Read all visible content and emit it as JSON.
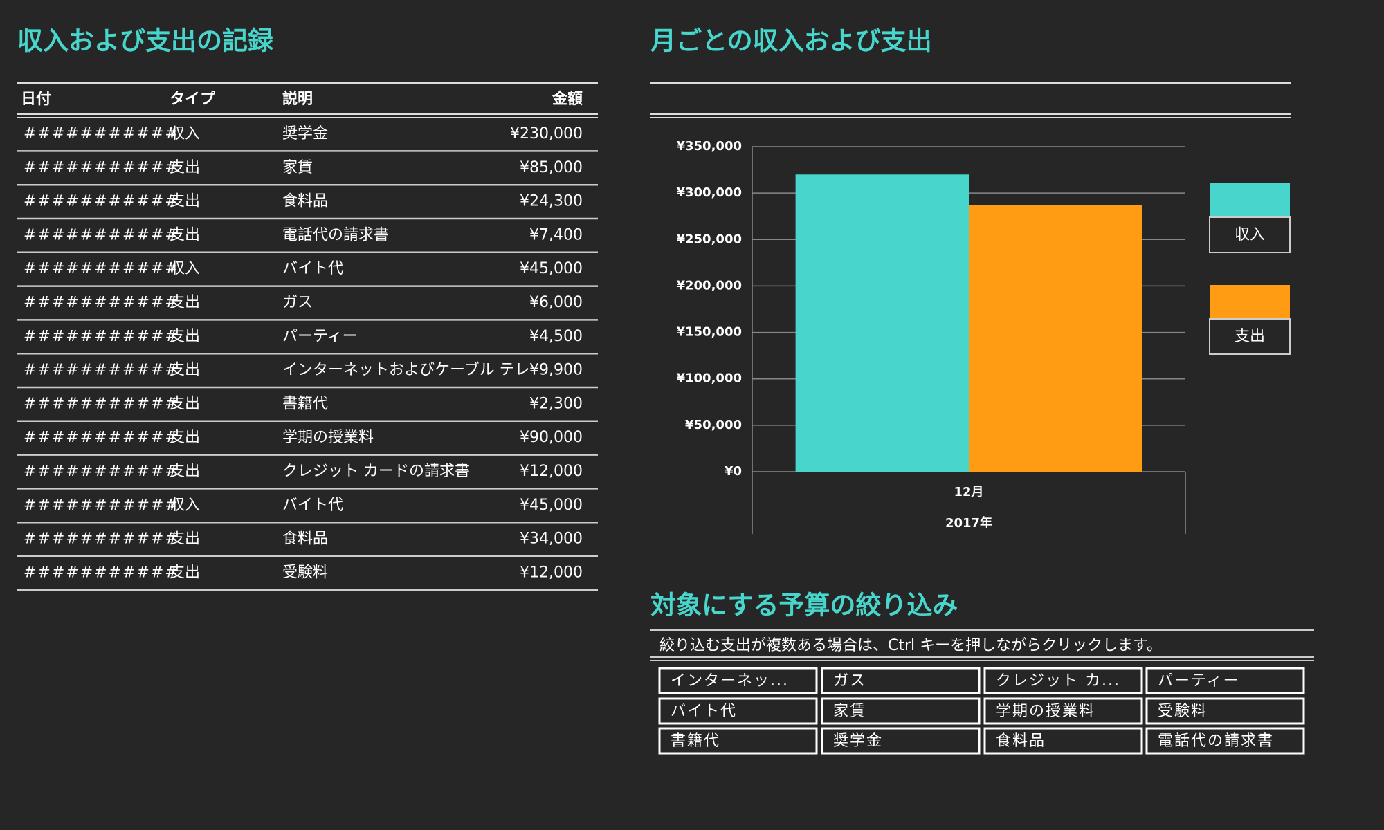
{
  "ledger": {
    "title": "収入および支出の記録",
    "headers": [
      "日付",
      "タイプ",
      "説明",
      "金額"
    ],
    "type_colors": {
      "収入": "#48d6cc",
      "支出": "#ff9c13"
    },
    "rows": [
      [
        "###########",
        "収入",
        "奨学金",
        "¥230,000"
      ],
      [
        "###########",
        "支出",
        "家賃",
        "¥85,000"
      ],
      [
        "###########",
        "支出",
        "食料品",
        "¥24,300"
      ],
      [
        "###########",
        "支出",
        "電話代の請求書",
        "¥7,400"
      ],
      [
        "###########",
        "収入",
        "バイト代",
        "¥45,000"
      ],
      [
        "###########",
        "支出",
        "ガス",
        "¥6,000"
      ],
      [
        "###########",
        "支出",
        "パーティー",
        "¥4,500"
      ],
      [
        "###########",
        "支出",
        "インターネットおよびケーブル テレ",
        "¥9,900"
      ],
      [
        "###########",
        "支出",
        "書籍代",
        "¥2,300"
      ],
      [
        "###########",
        "支出",
        "学期の授業料",
        "¥90,000"
      ],
      [
        "###########",
        "支出",
        "クレジット カードの請求書",
        "¥12,000"
      ],
      [
        "###########",
        "収入",
        "バイト代",
        "¥45,000"
      ],
      [
        "###########",
        "支出",
        "食料品",
        "¥34,000"
      ],
      [
        "###########",
        "支出",
        "受験料",
        "¥12,000"
      ]
    ]
  },
  "chart_data": {
    "type": "bar",
    "title": "月ごとの収入および支出",
    "categories": [
      "12月"
    ],
    "category_group": "2017年",
    "series": [
      {
        "name": "収入",
        "color": "#48d6cc",
        "values": [
          320000
        ]
      },
      {
        "name": "支出",
        "color": "#ff9c13",
        "values": [
          287400
        ]
      }
    ],
    "ylim": [
      0,
      350000
    ],
    "yticks": [
      {
        "value": 0,
        "label": "¥0"
      },
      {
        "value": 50000,
        "label": "¥50,000"
      },
      {
        "value": 100000,
        "label": "¥100,000"
      },
      {
        "value": 150000,
        "label": "¥150,000"
      },
      {
        "value": 200000,
        "label": "¥200,000"
      },
      {
        "value": 250000,
        "label": "¥250,000"
      },
      {
        "value": 300000,
        "label": "¥300,000"
      },
      {
        "value": 350000,
        "label": "¥350,000"
      }
    ],
    "grid": true,
    "legend": "right"
  },
  "slicer": {
    "title": "対象にする予算の絞り込み",
    "instruction": "絞り込む支出が複数ある場合は、Ctrl キーを押しながらクリックします。",
    "buttons": [
      "インターネッ...",
      "ガス",
      "クレジット カ...",
      "パーティー",
      "バイト代",
      "家賃",
      "学期の授業料",
      "受験料",
      "書籍代",
      "奨学金",
      "食料品",
      "電話代の請求書"
    ]
  }
}
